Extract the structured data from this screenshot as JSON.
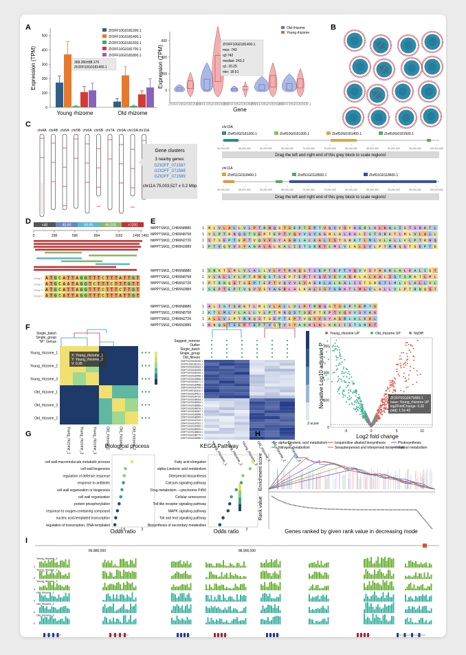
{
  "panels": {
    "a": "A",
    "b": "B",
    "c": "C",
    "d": "D",
    "e": "E",
    "f": "F",
    "g": "G",
    "h": "H",
    "i": "I"
  },
  "colors": {
    "blue": "#2e5f8a",
    "orange": "#e8782a",
    "green": "#3fa66b",
    "red": "#d33a36",
    "purple": "#8a63b8",
    "teal": "#32a789",
    "young": "#e15b4d",
    "old": "#3bb391"
  },
  "panel_a": {
    "legend": [
      "ZIOFF10G0181200.1",
      "ZIOFF10G0181400.1",
      "ZIOFF10G0181500.1",
      "ZIOFF10G0181700.1",
      "ZIOFF10G0181800.1"
    ],
    "ylabel": "Expression (TPM)",
    "groups": [
      "Young rhizome",
      "Old rhizome"
    ],
    "yticks": [
      "0",
      "100",
      "200",
      "300",
      "400",
      "500"
    ],
    "tooltip": [
      "368.360±88.176",
      "ZIOFF10G0181400.1"
    ],
    "violin_ylabel": "Expression (TPM)",
    "violin_xlabel": "Gene",
    "violin_legend": [
      "Old rhizome",
      "Young rhizome"
    ],
    "violin_tooltip": [
      "ZIOFF10G0181400.1",
      "max: 743",
      "q3:742",
      "median: 243.2",
      "q1: 20.25",
      "min: 18.51"
    ],
    "violin_yticks": [
      "0",
      "200",
      "400",
      "600"
    ]
  },
  "panel_c": {
    "chromosomes": [
      "chr4A",
      "chr4B",
      "chr5A",
      "chr5B",
      "chr6A",
      "chr6B",
      "chr7A",
      "chr9A",
      "chr10A",
      "chr11A"
    ],
    "cluster_title": "Gene clusters",
    "cluster_sub": "3 nearby genes:",
    "cluster_genes": [
      "GZIOFF_071587",
      "GZIOFF_071588",
      "GZIOFF_071589"
    ],
    "cluster_pos": "chr11A:75,003,527 ± 0.2 Mbp",
    "track1": {
      "chrom": "chr10A",
      "genes": [
        "ZIoff10G0181200.1",
        "ZIoff10G0181300.1",
        "ZIoff10G0181400.1",
        "ZIoff10G0181500.1"
      ]
    },
    "track2": {
      "chrom": "chr11A",
      "genes": [
        "ZIoff11G0118400.1",
        "ZIoff11G0118500.1",
        "ZIoff11G0118600.1"
      ]
    },
    "drag_text": "Drag the left and right end of this grey block to scale regions!"
  },
  "panel_d": {
    "legend": [
      "<40",
      "40-60",
      "60-80",
      "80-200",
      ">=200"
    ],
    "ticks": [
      "0",
      "298",
      "596",
      "894",
      "1192",
      "1490 1491"
    ]
  },
  "panel_e": {
    "seqnames": [
      "IMPPTSM11_CHR6N8880",
      "IMPPTSM11_CHR6N8758",
      "IMPPTSM11_CHR6N2726",
      "IMPPTSM11_CHR6N2889"
    ]
  },
  "panel_f": {
    "heat_rows": [
      "Young_rhizome_1",
      "Young_rhizome_2",
      "Young_rhizome_3",
      "Old_rhizome_1",
      "Old_rhizome_3",
      "Old_rhizome_2"
    ],
    "heat_tooltip": [
      "X: Young_rhizome_1",
      "Y: Young_rhizome_2",
      "V: 0.95"
    ],
    "annot_labels": [
      "Single_batch",
      "Single_group",
      "\"M\": Genus"
    ],
    "cluster_annot": [
      "Suggest_remove",
      "Outlier",
      "Single_batch",
      "Single_group",
      "Old_fitness"
    ],
    "cluster_cols": [
      "Young_rhizome_1",
      "Young_rhizome_2",
      "Young_rhizome_3",
      "Old_rhizome_1",
      "Old_rhizome_2",
      "Old_rhizome_3"
    ],
    "zscore": "Z-score",
    "volcano_legend": [
      "Young_rhizome UP",
      "Old_rhizome UP",
      "NoDiff"
    ],
    "volcano_ylabel": "Negative Log10 adjusted P",
    "volcano_xlabel": "Log2 fold change",
    "volcano_tooltip": [
      "ZIOFF01G0479480.1",
      "base: Young_rhizome UP",
      "log2FoldChange: 6.32",
      "padj: 1.1e-42"
    ],
    "volcano_xticks": [
      "-5",
      "0",
      "5",
      "10"
    ],
    "volcano_yticks": [
      "0",
      "100",
      "200",
      "300"
    ]
  },
  "panel_g": {
    "bp_title": "Biological process",
    "bp_terms": [
      "cell wall macromolecule metabolic process",
      "cell wall biogenesis",
      "regulation of defense response",
      "response to antibiotic",
      "cell wall organization or biogenesis",
      "cell wall organization",
      "protein phosphorylation",
      "response to oxygen-containing compound",
      "nucleic acid-templated transcription",
      "regulation of transcription, DNA-templated"
    ],
    "bp_xticks": [
      "1.5",
      "2"
    ],
    "kegg_title": "KEGG Pathway",
    "kegg_terms": [
      "Fatty acid elongation",
      "alpha-Linolenic acid metabolism",
      "Diterpenoid biosynthesis",
      "Calcium signaling pathway",
      "Drug metabolism - cytochrome P450",
      "Cellular senescence",
      "Toll-like receptor signaling pathway",
      "MAPK signaling pathway",
      "Toll and Imd signaling pathway",
      "Biosynthesis of secondary metabolites"
    ],
    "kegg_xticks": [
      "2"
    ],
    "xlabel": "Odds ratio"
  },
  "panel_h": {
    "legend": [
      "alpha-Linolenic acid metabolism",
      "Isoquinoline alkaloid biosynthesis",
      "Photosynthesis",
      "Nitrogen metabolism",
      "Sesquiterpenoid and triterpenoid biosynthesis",
      "Retinol metabolism"
    ],
    "ylabel_top": "Enrichment score",
    "ylabel_bottom": "Rank value",
    "xlabel": "Genes ranked by given rank value in decreasing mode"
  },
  "panel_i": {
    "tracks": [
      "Young_rhizome_1",
      "Young_rhizome_2",
      "Young_rhizome_3",
      "Old_rhizome_1",
      "Old_rhizome_2",
      "Old_rhizome_3"
    ],
    "coords": [
      "86,880,000",
      "88,900,000"
    ]
  }
}
